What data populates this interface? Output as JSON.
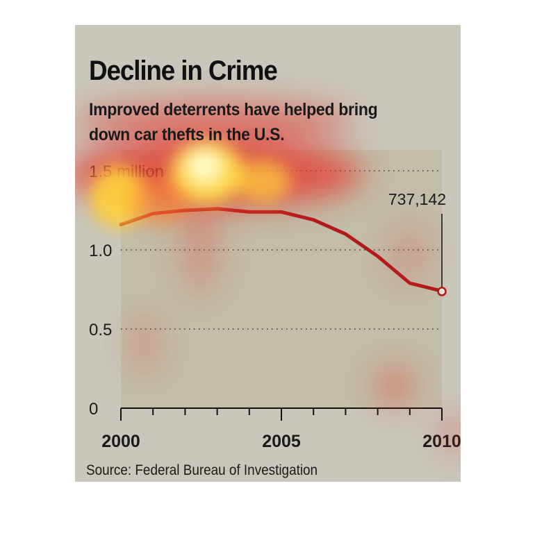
{
  "chart_data": {
    "type": "line",
    "title": "Decline in Crime",
    "subtitle": "Improved deterrents have helped bring down car thefts in the U.S.",
    "ylabel": "",
    "xlabel": "",
    "y_unit_label": "1.5 million",
    "ylim": [
      0,
      1.5
    ],
    "xlim": [
      2000,
      2010
    ],
    "yticks": [
      {
        "value": 0,
        "label": "0"
      },
      {
        "value": 0.5,
        "label": "0.5"
      },
      {
        "value": 1.0,
        "label": "1.0"
      },
      {
        "value": 1.5,
        "label": "1.5 million"
      }
    ],
    "xticks_labeled": [
      2000,
      2005,
      2010
    ],
    "series": [
      {
        "color": "#b21a1a",
        "x": [
          2000,
          2001,
          2002,
          2003,
          2004,
          2005,
          2006,
          2007,
          2008,
          2009,
          2010
        ],
        "values": [
          1.16,
          1.23,
          1.25,
          1.26,
          1.24,
          1.24,
          1.19,
          1.1,
          0.96,
          0.79,
          0.74
        ]
      }
    ],
    "annotation": {
      "x": 2010,
      "value": 0.737142,
      "label": "737,142"
    },
    "grid": "dotted horizontal",
    "source": "Source: Federal Bureau of Investigation"
  },
  "colors": {
    "background": "#c9c6bb",
    "plot_area": "#c2bda8",
    "line": "#b21a1a",
    "text": "#1a1a1a"
  }
}
